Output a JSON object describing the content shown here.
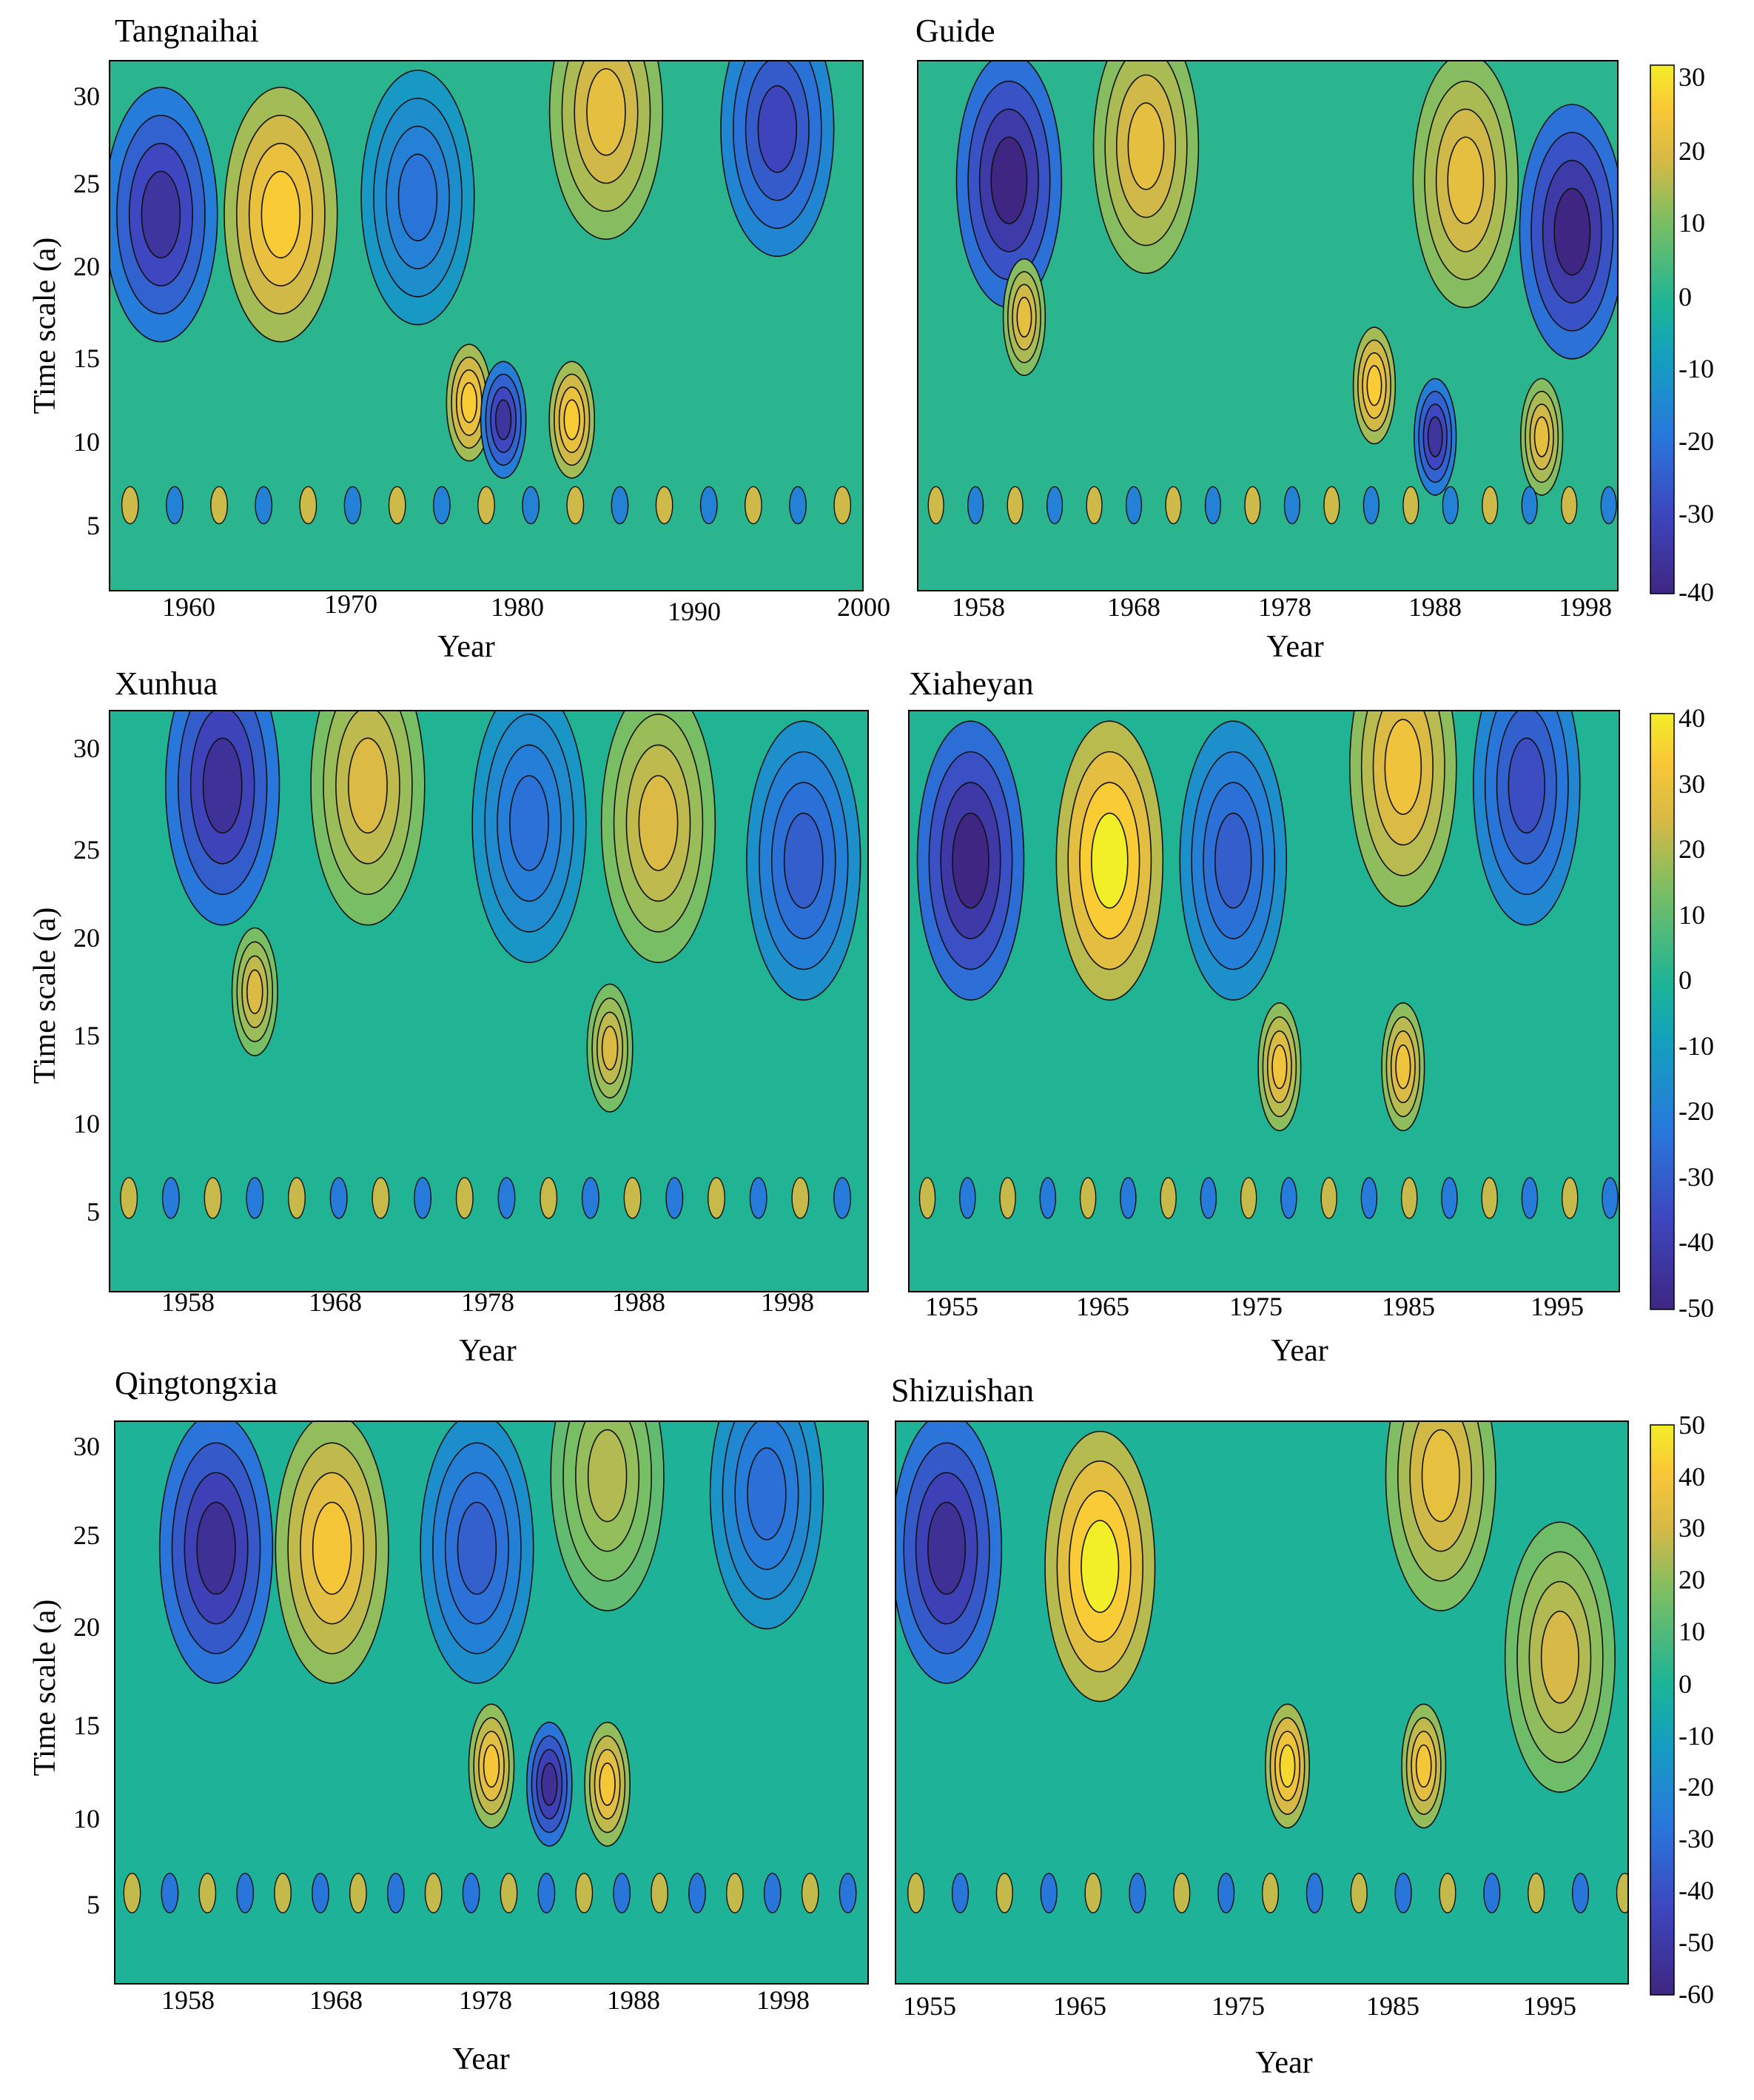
{
  "figure": {
    "panels": [
      {
        "title": "Tangnaihai",
        "xlabel": "Year",
        "ylabel": "Time scale (a)",
        "xticks": [
          "1960",
          "1970",
          "1980",
          "1990",
          "2000"
        ],
        "yticks": [
          "5",
          "10",
          "15",
          "20",
          "25",
          "30"
        ]
      },
      {
        "title": "Guide",
        "xlabel": "Year",
        "ylabel": "",
        "xticks": [
          "1958",
          "1968",
          "1978",
          "1988",
          "1998"
        ],
        "yticks": []
      },
      {
        "title": "Xunhua",
        "xlabel": "Year",
        "ylabel": "Time scale (a)",
        "xticks": [
          "1958",
          "1968",
          "1978",
          "1988",
          "1998"
        ],
        "yticks": [
          "5",
          "10",
          "15",
          "20",
          "25",
          "30"
        ]
      },
      {
        "title": "Xiaheyan",
        "xlabel": "Year",
        "ylabel": "",
        "xticks": [
          "1955",
          "1965",
          "1975",
          "1985",
          "1995"
        ],
        "yticks": []
      },
      {
        "title": "Qingtongxia",
        "xlabel": "Year",
        "ylabel": "Time scale (a)",
        "xticks": [
          "1958",
          "1968",
          "1978",
          "1988",
          "1998"
        ],
        "yticks": [
          "5",
          "10",
          "15",
          "20",
          "25",
          "30"
        ]
      },
      {
        "title": "Shizuishan",
        "xlabel": "Year",
        "ylabel": "",
        "xticks": [
          "1955",
          "1965",
          "1975",
          "1985",
          "1995"
        ],
        "yticks": []
      }
    ],
    "colorbars": [
      {
        "ticks": [
          "30",
          "20",
          "10",
          "0",
          "-10",
          "-20",
          "-30",
          "-40"
        ]
      },
      {
        "ticks": [
          "40",
          "30",
          "20",
          "10",
          "0",
          "-10",
          "-20",
          "-30",
          "-40",
          "-50"
        ]
      },
      {
        "ticks": [
          "50",
          "40",
          "30",
          "20",
          "10",
          "0",
          "-10",
          "-20",
          "-30",
          "-40",
          "-50",
          "-60"
        ]
      }
    ]
  },
  "chart_data": [
    {
      "type": "heatmap",
      "title": "Tangnaihai",
      "xlabel": "Year",
      "ylabel": "Time scale (a)",
      "xlim": [
        1956,
        2000
      ],
      "ylim": [
        1,
        32
      ],
      "colorbar_range": [
        -40,
        30
      ],
      "features": [
        {
          "x": 1959,
          "y": 23,
          "value": -35
        },
        {
          "x": 1966,
          "y": 23,
          "value": 25
        },
        {
          "x": 1974,
          "y": 24,
          "value": -20
        },
        {
          "x": 1985,
          "y": 29,
          "value": 20
        },
        {
          "x": 1995,
          "y": 28,
          "value": -30
        },
        {
          "x": 1977,
          "y": 12,
          "value": 25
        },
        {
          "x": 1979,
          "y": 11,
          "value": -35
        },
        {
          "x": 1983,
          "y": 11,
          "value": 25
        }
      ]
    },
    {
      "type": "heatmap",
      "title": "Guide",
      "xlabel": "Year",
      "ylabel": "",
      "xlim": [
        1954,
        2000
      ],
      "ylim": [
        1,
        32
      ],
      "colorbar_range": [
        -40,
        30
      ],
      "features": [
        {
          "x": 1960,
          "y": 25,
          "value": -40
        },
        {
          "x": 1969,
          "y": 27,
          "value": 20
        },
        {
          "x": 1990,
          "y": 25,
          "value": 20
        },
        {
          "x": 1997,
          "y": 22,
          "value": -40
        },
        {
          "x": 1961,
          "y": 17,
          "value": 20
        },
        {
          "x": 1984,
          "y": 13,
          "value": 25
        },
        {
          "x": 1988,
          "y": 10,
          "value": -35
        },
        {
          "x": 1995,
          "y": 10,
          "value": 20
        }
      ]
    },
    {
      "type": "heatmap",
      "title": "Xunhua",
      "xlabel": "Year",
      "ylabel": "",
      "xlim": [
        1954,
        2001
      ],
      "ylim": [
        1,
        32
      ],
      "colorbar_range": [
        -50,
        40
      ],
      "features": [
        {
          "x": 1961,
          "y": 28,
          "value": -45
        },
        {
          "x": 1970,
          "y": 28,
          "value": 25
        },
        {
          "x": 1980,
          "y": 26,
          "value": -25
        },
        {
          "x": 1988,
          "y": 26,
          "value": 25
        },
        {
          "x": 1997,
          "y": 24,
          "value": -30
        },
        {
          "x": 1963,
          "y": 17,
          "value": 25
        },
        {
          "x": 1985,
          "y": 14,
          "value": 25
        }
      ]
    },
    {
      "type": "heatmap",
      "title": "Xiaheyan",
      "xlabel": "Year",
      "ylabel": "",
      "xlim": [
        1953,
        1999
      ],
      "ylim": [
        1,
        32
      ],
      "colorbar_range": [
        -50,
        40
      ],
      "features": [
        {
          "x": 1957,
          "y": 24,
          "value": -50
        },
        {
          "x": 1966,
          "y": 24,
          "value": 40
        },
        {
          "x": 1974,
          "y": 24,
          "value": -30
        },
        {
          "x": 1985,
          "y": 29,
          "value": 30
        },
        {
          "x": 1993,
          "y": 28,
          "value": -35
        },
        {
          "x": 1977,
          "y": 13,
          "value": 30
        },
        {
          "x": 1985,
          "y": 13,
          "value": 30
        }
      ]
    },
    {
      "type": "heatmap",
      "title": "Qingtongxia",
      "xlabel": "Year",
      "ylabel": "",
      "xlim": [
        1954,
        2006
      ],
      "ylim": [
        1,
        32
      ],
      "colorbar_range": [
        -60,
        50
      ],
      "features": [
        {
          "x": 1961,
          "y": 25,
          "value": -55
        },
        {
          "x": 1969,
          "y": 25,
          "value": 40
        },
        {
          "x": 1979,
          "y": 25,
          "value": -35
        },
        {
          "x": 1988,
          "y": 29,
          "value": 25
        },
        {
          "x": 1999,
          "y": 28,
          "value": -30
        },
        {
          "x": 1980,
          "y": 13,
          "value": 40
        },
        {
          "x": 1984,
          "y": 12,
          "value": -55
        },
        {
          "x": 1988,
          "y": 12,
          "value": 40
        }
      ]
    },
    {
      "type": "heatmap",
      "title": "Shizuishan",
      "xlabel": "Year",
      "ylabel": "",
      "xlim": [
        1953,
        1996
      ],
      "ylim": [
        1,
        32
      ],
      "colorbar_range": [
        -60,
        50
      ],
      "features": [
        {
          "x": 1956,
          "y": 25,
          "value": -55
        },
        {
          "x": 1965,
          "y": 24,
          "value": 50
        },
        {
          "x": 1985,
          "y": 29,
          "value": 35
        },
        {
          "x": 1992,
          "y": 19,
          "value": 30
        },
        {
          "x": 1976,
          "y": 13,
          "value": 45
        },
        {
          "x": 1984,
          "y": 13,
          "value": 40
        }
      ]
    }
  ]
}
